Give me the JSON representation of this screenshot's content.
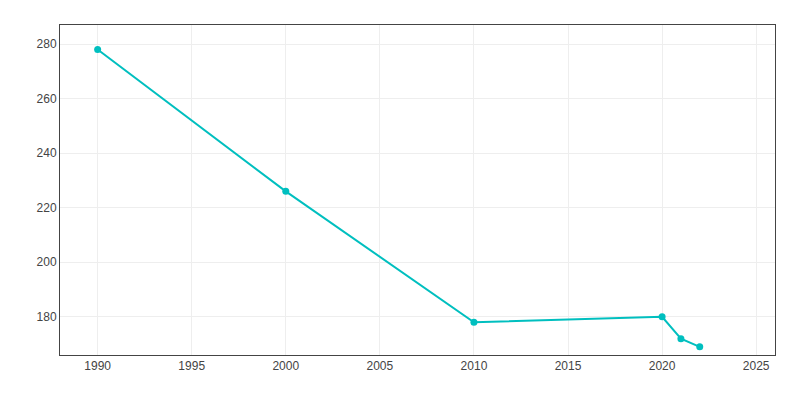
{
  "chart_data": {
    "type": "line",
    "x": [
      1990,
      2000,
      2010,
      2020,
      2021,
      2022
    ],
    "values": [
      278,
      226,
      178,
      180,
      172,
      169
    ],
    "color": "#00BFBF",
    "marker": "circle",
    "xlim": [
      1988,
      2026
    ],
    "ylim": [
      166,
      287
    ],
    "xticks": [
      1990,
      1995,
      2000,
      2005,
      2010,
      2015,
      2020,
      2025
    ],
    "yticks": [
      180,
      200,
      220,
      240,
      260,
      280
    ],
    "grid": true
  }
}
